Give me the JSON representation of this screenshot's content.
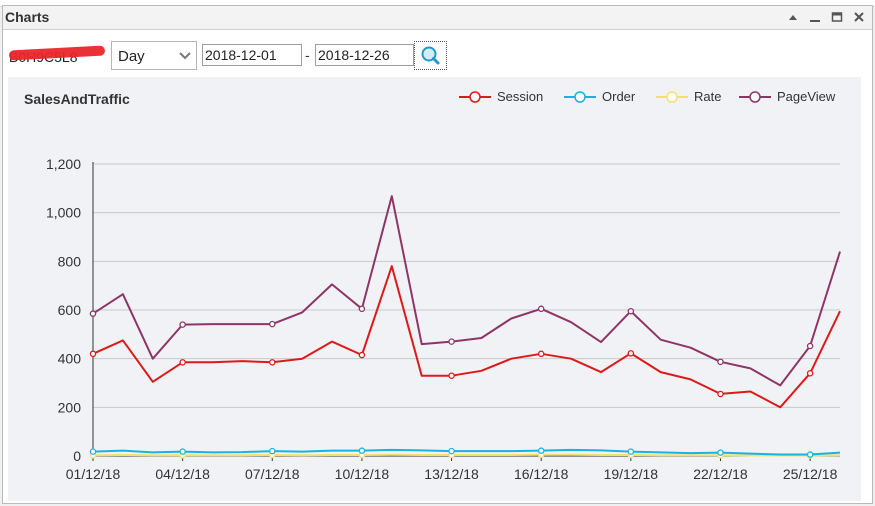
{
  "window": {
    "title": "Charts"
  },
  "toolbar": {
    "store_text": "B0H9C5L8",
    "period": "Day",
    "date_from": "2018-12-01",
    "date_sep": "-",
    "date_to": "2018-12-26"
  },
  "colors": {
    "Session": "#dd1a1a",
    "Order": "#18b3e0",
    "Rate": "#f2e16b",
    "PageView": "#8e3568",
    "grid": "#c9c9c9",
    "panel_bg": "#f1f2f6"
  },
  "icons": {
    "minimize": "minimize-icon",
    "maximize": "maximize-icon",
    "collapse": "collapse-icon",
    "close": "close-icon",
    "dropdown": "chevron-down-icon",
    "search": "magnifier-icon"
  },
  "chart_data": {
    "type": "line",
    "title": "SalesAndTraffic",
    "legend_position": "top-right",
    "grid": true,
    "ylim": [
      0,
      1200
    ],
    "yticks": [
      "0",
      "200",
      "400",
      "600",
      "800",
      "1,000",
      "1,200"
    ],
    "x": [
      "01/12/18",
      "02/12/18",
      "03/12/18",
      "04/12/18",
      "05/12/18",
      "06/12/18",
      "07/12/18",
      "08/12/18",
      "09/12/18",
      "10/12/18",
      "11/12/18",
      "12/12/18",
      "13/12/18",
      "14/12/18",
      "15/12/18",
      "16/12/18",
      "17/12/18",
      "18/12/18",
      "19/12/18",
      "20/12/18",
      "21/12/18",
      "22/12/18",
      "23/12/18",
      "24/12/18",
      "25/12/18",
      "26/12/18"
    ],
    "xtick_labels": [
      "01/12/18",
      "04/12/18",
      "07/12/18",
      "10/12/18",
      "13/12/18",
      "16/12/18",
      "19/12/18",
      "22/12/18",
      "25/12/18"
    ],
    "series": [
      {
        "name": "Session",
        "values": [
          420,
          475,
          305,
          385,
          385,
          390,
          385,
          400,
          470,
          415,
          780,
          330,
          330,
          350,
          400,
          420,
          400,
          345,
          422,
          345,
          315,
          255,
          265,
          200,
          340,
          595
        ]
      },
      {
        "name": "Order",
        "values": [
          18,
          22,
          15,
          18,
          15,
          16,
          20,
          18,
          22,
          22,
          25,
          23,
          20,
          20,
          20,
          22,
          25,
          23,
          18,
          15,
          12,
          14,
          10,
          6,
          6,
          14
        ]
      },
      {
        "name": "Rate",
        "values": [
          3,
          4,
          3,
          3,
          3,
          3,
          4,
          3,
          4,
          4,
          5,
          4,
          4,
          4,
          4,
          5,
          5,
          4,
          4,
          3,
          3,
          3,
          2,
          2,
          2,
          3
        ]
      },
      {
        "name": "PageView",
        "values": [
          585,
          665,
          400,
          540,
          542,
          542,
          542,
          590,
          705,
          605,
          1068,
          460,
          470,
          485,
          565,
          605,
          550,
          468,
          595,
          478,
          445,
          387,
          360,
          290,
          452,
          840
        ]
      }
    ]
  }
}
